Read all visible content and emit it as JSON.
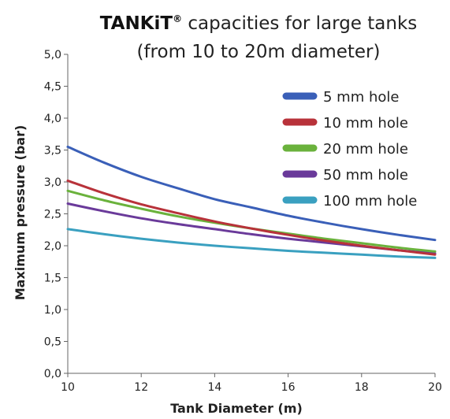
{
  "chart_data": {
    "type": "line",
    "title_brand": "TANKiT",
    "title_brand_mark": "®",
    "title_line1_rest": " capacities for large tanks",
    "title_line2": "(from 10 to 20m diameter)",
    "xlabel": "Tank Diameter (m)",
    "ylabel": "Maximum pressure (bar)",
    "xlim": [
      10,
      20
    ],
    "ylim": [
      0,
      5
    ],
    "x_ticks": [
      "10",
      "12",
      "14",
      "16",
      "18",
      "20"
    ],
    "y_ticks": [
      "0,0",
      "0,5",
      "1,0",
      "1,5",
      "2,0",
      "2,5",
      "3,0",
      "3,5",
      "4,0",
      "4,5",
      "5,0"
    ],
    "grid": false,
    "legend_position": "top-right",
    "x": [
      10,
      11,
      12,
      13,
      14,
      15,
      16,
      17,
      18,
      19,
      20
    ],
    "series": [
      {
        "name": "5 mm hole",
        "color": "#3a5fb8",
        "values": [
          3.55,
          3.3,
          3.08,
          2.9,
          2.73,
          2.6,
          2.47,
          2.36,
          2.26,
          2.17,
          2.09
        ]
      },
      {
        "name": "10 mm hole",
        "color": "#b8323a",
        "values": [
          3.02,
          2.82,
          2.65,
          2.51,
          2.38,
          2.27,
          2.17,
          2.08,
          2.0,
          1.93,
          1.86
        ]
      },
      {
        "name": "20 mm hole",
        "color": "#6ab23c",
        "values": [
          2.86,
          2.71,
          2.58,
          2.46,
          2.36,
          2.27,
          2.19,
          2.11,
          2.04,
          1.97,
          1.91
        ]
      },
      {
        "name": "50 mm hole",
        "color": "#6a3a9a",
        "values": [
          2.66,
          2.54,
          2.43,
          2.34,
          2.26,
          2.18,
          2.11,
          2.05,
          1.99,
          1.93,
          1.88
        ]
      },
      {
        "name": "100 mm hole",
        "color": "#3aa0c0",
        "values": [
          2.26,
          2.18,
          2.11,
          2.05,
          2.0,
          1.96,
          1.92,
          1.89,
          1.86,
          1.83,
          1.81
        ]
      }
    ]
  }
}
